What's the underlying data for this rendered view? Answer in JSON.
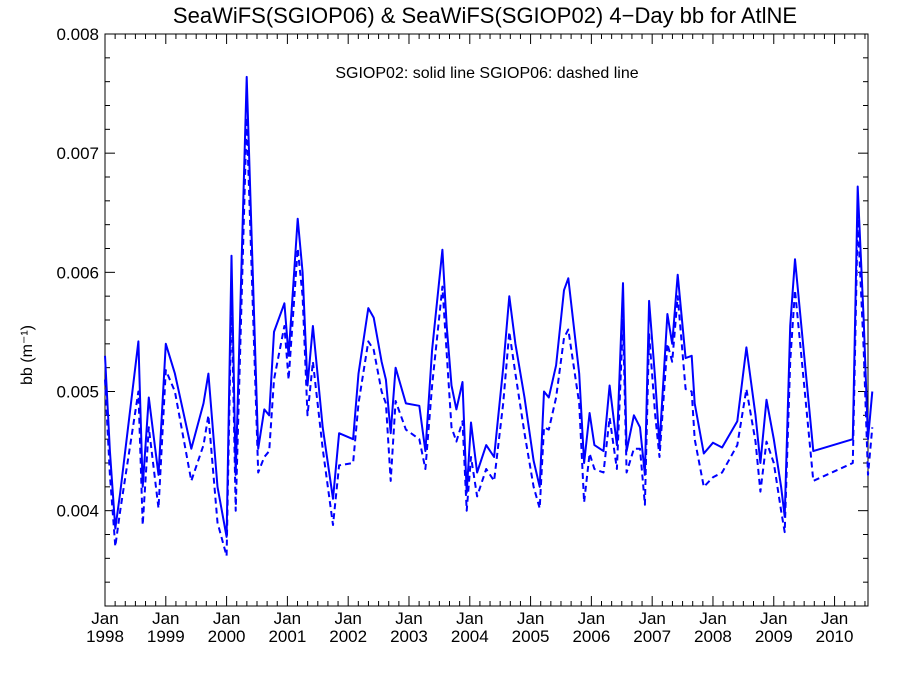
{
  "chart_data": {
    "type": "line",
    "title": "SeaWiFS(SGIOP06) & SeaWiFS(SGIOP02) 4−Day bb for AtlNE",
    "annotation": "SGIOP02: solid line   SGIOP06: dashed line",
    "xlabel": "",
    "ylabel": "bb (m⁻¹)",
    "xlim": [
      1998.0,
      2010.55
    ],
    "ylim": [
      0.0032,
      0.008
    ],
    "yticks": [
      {
        "value": 0.004,
        "label": "0.004"
      },
      {
        "value": 0.005,
        "label": "0.005"
      },
      {
        "value": 0.006,
        "label": "0.006"
      },
      {
        "value": 0.007,
        "label": "0.007"
      },
      {
        "value": 0.008,
        "label": "0.008"
      }
    ],
    "xticks": [
      {
        "value": 1998,
        "month": "Jan",
        "year": "1998"
      },
      {
        "value": 1999,
        "month": "Jan",
        "year": "1999"
      },
      {
        "value": 2000,
        "month": "Jan",
        "year": "2000"
      },
      {
        "value": 2001,
        "month": "Jan",
        "year": "2001"
      },
      {
        "value": 2002,
        "month": "Jan",
        "year": "2002"
      },
      {
        "value": 2003,
        "month": "Jan",
        "year": "2003"
      },
      {
        "value": 2004,
        "month": "Jan",
        "year": "2004"
      },
      {
        "value": 2005,
        "month": "Jan",
        "year": "2005"
      },
      {
        "value": 2006,
        "month": "Jan",
        "year": "2006"
      },
      {
        "value": 2007,
        "month": "Jan",
        "year": "2007"
      },
      {
        "value": 2008,
        "month": "Jan",
        "year": "2008"
      },
      {
        "value": 2009,
        "month": "Jan",
        "year": "2009"
      },
      {
        "value": 2010,
        "month": "Jan",
        "year": "2010"
      }
    ],
    "grid": false,
    "color": "#0000ff",
    "series": [
      {
        "name": "SGIOP02",
        "style": "solid",
        "points": [
          [
            1998.0,
            0.0053
          ],
          [
            1998.08,
            0.0045
          ],
          [
            1998.17,
            0.00385
          ],
          [
            1998.25,
            0.00415
          ],
          [
            1998.55,
            0.00542
          ],
          [
            1998.62,
            0.0042
          ],
          [
            1998.72,
            0.00495
          ],
          [
            1998.88,
            0.0043
          ],
          [
            1999.0,
            0.0054
          ],
          [
            1999.15,
            0.00515
          ],
          [
            1999.42,
            0.00452
          ],
          [
            1999.62,
            0.0049
          ],
          [
            1999.7,
            0.00515
          ],
          [
            1999.85,
            0.0042
          ],
          [
            2000.0,
            0.00378
          ],
          [
            2000.08,
            0.00614
          ],
          [
            2000.15,
            0.0043
          ],
          [
            2000.33,
            0.00764
          ],
          [
            2000.52,
            0.00452
          ],
          [
            2000.62,
            0.00485
          ],
          [
            2000.7,
            0.0048
          ],
          [
            2000.78,
            0.0055
          ],
          [
            2000.95,
            0.00574
          ],
          [
            2001.02,
            0.0053
          ],
          [
            2001.17,
            0.00645
          ],
          [
            2001.25,
            0.006
          ],
          [
            2001.33,
            0.00505
          ],
          [
            2001.42,
            0.00555
          ],
          [
            2001.58,
            0.0047
          ],
          [
            2001.75,
            0.0041
          ],
          [
            2001.85,
            0.00465
          ],
          [
            2002.08,
            0.0046
          ],
          [
            2002.17,
            0.00515
          ],
          [
            2002.33,
            0.0057
          ],
          [
            2002.42,
            0.00562
          ],
          [
            2002.55,
            0.00525
          ],
          [
            2002.62,
            0.0051
          ],
          [
            2002.7,
            0.00465
          ],
          [
            2002.78,
            0.0052
          ],
          [
            2002.95,
            0.0049
          ],
          [
            2003.17,
            0.00488
          ],
          [
            2003.27,
            0.0045
          ],
          [
            2003.38,
            0.00535
          ],
          [
            2003.55,
            0.00619
          ],
          [
            2003.62,
            0.00555
          ],
          [
            2003.7,
            0.00505
          ],
          [
            2003.78,
            0.00485
          ],
          [
            2003.88,
            0.00508
          ],
          [
            2003.95,
            0.00415
          ],
          [
            2004.02,
            0.00474
          ],
          [
            2004.12,
            0.00432
          ],
          [
            2004.27,
            0.00455
          ],
          [
            2004.4,
            0.00445
          ],
          [
            2004.55,
            0.0052
          ],
          [
            2004.65,
            0.0058
          ],
          [
            2004.75,
            0.0054
          ],
          [
            2004.9,
            0.00495
          ],
          [
            2005.05,
            0.00442
          ],
          [
            2005.15,
            0.0042
          ],
          [
            2005.22,
            0.005
          ],
          [
            2005.3,
            0.00495
          ],
          [
            2005.42,
            0.00522
          ],
          [
            2005.55,
            0.00585
          ],
          [
            2005.62,
            0.00595
          ],
          [
            2005.8,
            0.00515
          ],
          [
            2005.88,
            0.0044
          ],
          [
            2005.97,
            0.00482
          ],
          [
            2006.05,
            0.00455
          ],
          [
            2006.2,
            0.0045
          ],
          [
            2006.3,
            0.00505
          ],
          [
            2006.42,
            0.00455
          ],
          [
            2006.52,
            0.00591
          ],
          [
            2006.58,
            0.0045
          ],
          [
            2006.7,
            0.0048
          ],
          [
            2006.8,
            0.0047
          ],
          [
            2006.88,
            0.0043
          ],
          [
            2006.95,
            0.00576
          ],
          [
            2007.05,
            0.0051
          ],
          [
            2007.12,
            0.00455
          ],
          [
            2007.25,
            0.00565
          ],
          [
            2007.33,
            0.0054
          ],
          [
            2007.42,
            0.00598
          ],
          [
            2007.55,
            0.00528
          ],
          [
            2007.65,
            0.0053
          ],
          [
            2007.7,
            0.0049
          ],
          [
            2007.85,
            0.00448
          ],
          [
            2008.0,
            0.00457
          ],
          [
            2008.15,
            0.00453
          ],
          [
            2008.4,
            0.00475
          ],
          [
            2008.55,
            0.00537
          ],
          [
            2008.7,
            0.0048
          ],
          [
            2008.78,
            0.0044
          ],
          [
            2008.88,
            0.00493
          ],
          [
            2009.0,
            0.0046
          ],
          [
            2009.12,
            0.0042
          ],
          [
            2009.18,
            0.00395
          ],
          [
            2009.27,
            0.00555
          ],
          [
            2009.35,
            0.00611
          ],
          [
            2009.5,
            0.0053
          ],
          [
            2009.65,
            0.0045
          ],
          [
            2010.3,
            0.0046
          ],
          [
            2010.38,
            0.00672
          ],
          [
            2010.48,
            0.0056
          ],
          [
            2010.55,
            0.0046
          ],
          [
            2010.62,
            0.005
          ]
        ]
      },
      {
        "name": "SGIOP06",
        "style": "dashed",
        "points": [
          [
            1998.0,
            0.0051
          ],
          [
            1998.08,
            0.0043
          ],
          [
            1998.17,
            0.0037
          ],
          [
            1998.25,
            0.004
          ],
          [
            1998.55,
            0.005
          ],
          [
            1998.62,
            0.00388
          ],
          [
            1998.72,
            0.0047
          ],
          [
            1998.88,
            0.00402
          ],
          [
            1999.0,
            0.00518
          ],
          [
            1999.15,
            0.005
          ],
          [
            1999.42,
            0.00425
          ],
          [
            1999.62,
            0.00455
          ],
          [
            1999.7,
            0.0048
          ],
          [
            1999.85,
            0.0039
          ],
          [
            2000.0,
            0.00362
          ],
          [
            2000.08,
            0.0058
          ],
          [
            2000.15,
            0.004
          ],
          [
            2000.33,
            0.0073
          ],
          [
            2000.52,
            0.00432
          ],
          [
            2000.62,
            0.00445
          ],
          [
            2000.7,
            0.0045
          ],
          [
            2000.78,
            0.0051
          ],
          [
            2000.95,
            0.00555
          ],
          [
            2001.02,
            0.0051
          ],
          [
            2001.17,
            0.0062
          ],
          [
            2001.25,
            0.0058
          ],
          [
            2001.33,
            0.0048
          ],
          [
            2001.42,
            0.00525
          ],
          [
            2001.58,
            0.00452
          ],
          [
            2001.75,
            0.00388
          ],
          [
            2001.85,
            0.00438
          ],
          [
            2002.08,
            0.0044
          ],
          [
            2002.17,
            0.0049
          ],
          [
            2002.33,
            0.00542
          ],
          [
            2002.42,
            0.00535
          ],
          [
            2002.55,
            0.005
          ],
          [
            2002.62,
            0.0049
          ],
          [
            2002.7,
            0.00425
          ],
          [
            2002.78,
            0.00492
          ],
          [
            2002.95,
            0.00468
          ],
          [
            2003.17,
            0.0046
          ],
          [
            2003.27,
            0.00435
          ],
          [
            2003.38,
            0.00505
          ],
          [
            2003.55,
            0.00588
          ],
          [
            2003.62,
            0.00532
          ],
          [
            2003.7,
            0.0047
          ],
          [
            2003.78,
            0.00458
          ],
          [
            2003.88,
            0.00475
          ],
          [
            2003.95,
            0.004
          ],
          [
            2004.02,
            0.00445
          ],
          [
            2004.12,
            0.00412
          ],
          [
            2004.27,
            0.00435
          ],
          [
            2004.4,
            0.00425
          ],
          [
            2004.55,
            0.0049
          ],
          [
            2004.65,
            0.0055
          ],
          [
            2004.75,
            0.00515
          ],
          [
            2004.9,
            0.00465
          ],
          [
            2005.05,
            0.0042
          ],
          [
            2005.15,
            0.00402
          ],
          [
            2005.22,
            0.0047
          ],
          [
            2005.3,
            0.00468
          ],
          [
            2005.42,
            0.00495
          ],
          [
            2005.55,
            0.00545
          ],
          [
            2005.62,
            0.00552
          ],
          [
            2005.8,
            0.0049
          ],
          [
            2005.88,
            0.00407
          ],
          [
            2005.97,
            0.00448
          ],
          [
            2006.05,
            0.00435
          ],
          [
            2006.2,
            0.00432
          ],
          [
            2006.3,
            0.00478
          ],
          [
            2006.42,
            0.00435
          ],
          [
            2006.52,
            0.0056
          ],
          [
            2006.58,
            0.00432
          ],
          [
            2006.7,
            0.00452
          ],
          [
            2006.8,
            0.00452
          ],
          [
            2006.88,
            0.00405
          ],
          [
            2006.95,
            0.00548
          ],
          [
            2007.05,
            0.0048
          ],
          [
            2007.12,
            0.00445
          ],
          [
            2007.25,
            0.0054
          ],
          [
            2007.33,
            0.00525
          ],
          [
            2007.42,
            0.0058
          ],
          [
            2007.55,
            0.00502
          ],
          [
            2007.65,
            0.005
          ],
          [
            2007.7,
            0.0046
          ],
          [
            2007.85,
            0.0042
          ],
          [
            2008.0,
            0.00428
          ],
          [
            2008.15,
            0.00432
          ],
          [
            2008.4,
            0.00455
          ],
          [
            2008.55,
            0.00502
          ],
          [
            2008.7,
            0.00458
          ],
          [
            2008.78,
            0.00416
          ],
          [
            2008.88,
            0.00458
          ],
          [
            2009.0,
            0.0044
          ],
          [
            2009.12,
            0.004
          ],
          [
            2009.18,
            0.00382
          ],
          [
            2009.27,
            0.00525
          ],
          [
            2009.35,
            0.00585
          ],
          [
            2009.5,
            0.00505
          ],
          [
            2009.65,
            0.00425
          ],
          [
            2010.3,
            0.0044
          ],
          [
            2010.38,
            0.00645
          ],
          [
            2010.48,
            0.00535
          ],
          [
            2010.55,
            0.0043
          ],
          [
            2010.62,
            0.0047
          ]
        ]
      }
    ]
  }
}
